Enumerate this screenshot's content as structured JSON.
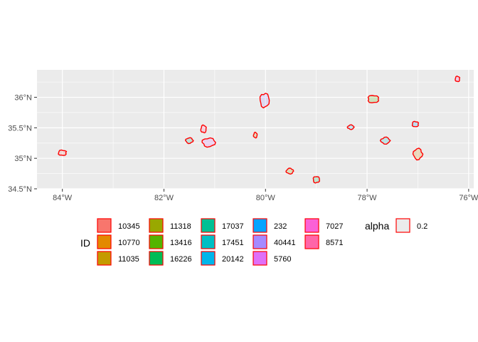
{
  "chart_data": {
    "type": "map",
    "panel_background": "#EBEBEB",
    "grid_color": "#FFFFFF",
    "outline_color": "#FF0000",
    "xlim": [
      -84.5,
      -75.9
    ],
    "ylim": [
      34.5,
      36.45
    ],
    "x_ticks": [
      {
        "value": -84,
        "label": "84°W"
      },
      {
        "value": -82,
        "label": "82°W"
      },
      {
        "value": -80,
        "label": "80°W"
      },
      {
        "value": -78,
        "label": "78°W"
      },
      {
        "value": -76,
        "label": "76°W"
      }
    ],
    "y_ticks": [
      {
        "value": 34.5,
        "label": "34.5°N"
      },
      {
        "value": 35.0,
        "label": "35°N"
      },
      {
        "value": 35.5,
        "label": "35.5°N"
      },
      {
        "value": 36.0,
        "label": "36°N"
      }
    ],
    "regions": [
      {
        "id": "10345",
        "lon": -84.0,
        "lat": 35.09,
        "rx": 0.09,
        "ry": 0.05
      },
      {
        "id": "17037",
        "lon": -81.5,
        "lat": 35.29,
        "rx": 0.08,
        "ry": 0.05
      },
      {
        "id": "8571",
        "lon": -81.22,
        "lat": 35.48,
        "rx": 0.06,
        "ry": 0.07
      },
      {
        "id": "5760",
        "lon": -81.12,
        "lat": 35.26,
        "rx": 0.14,
        "ry": 0.08
      },
      {
        "id": "11035",
        "lon": -80.2,
        "lat": 35.38,
        "rx": 0.04,
        "ry": 0.05
      },
      {
        "id": "40441",
        "lon": -80.02,
        "lat": 35.95,
        "rx": 0.1,
        "ry": 0.13
      },
      {
        "id": "11318",
        "lon": -79.52,
        "lat": 34.79,
        "rx": 0.08,
        "ry": 0.05
      },
      {
        "id": "16226",
        "lon": -79.0,
        "lat": 34.65,
        "rx": 0.07,
        "ry": 0.06
      },
      {
        "id": "20142",
        "lon": -78.32,
        "lat": 35.51,
        "rx": 0.07,
        "ry": 0.04
      },
      {
        "id": "13416",
        "lon": -77.88,
        "lat": 35.97,
        "rx": 0.12,
        "ry": 0.07
      },
      {
        "id": "17451",
        "lon": -77.64,
        "lat": 35.29,
        "rx": 0.1,
        "ry": 0.06
      },
      {
        "id": "232",
        "lon": -77.05,
        "lat": 35.56,
        "rx": 0.07,
        "ry": 0.05
      },
      {
        "id": "10770",
        "lon": -77.0,
        "lat": 35.07,
        "rx": 0.1,
        "ry": 0.1
      },
      {
        "id": "7027",
        "lon": -76.22,
        "lat": 36.3,
        "rx": 0.05,
        "ry": 0.05
      }
    ],
    "legend": {
      "placement": "bottom",
      "fill_title": "ID",
      "fill_items": [
        {
          "label": "10345",
          "color": "#F8766D"
        },
        {
          "label": "10770",
          "color": "#E38900"
        },
        {
          "label": "11035",
          "color": "#C49A00"
        },
        {
          "label": "11318",
          "color": "#99A800"
        },
        {
          "label": "13416",
          "color": "#53B400"
        },
        {
          "label": "16226",
          "color": "#00BC56"
        },
        {
          "label": "17037",
          "color": "#00C094"
        },
        {
          "label": "17451",
          "color": "#00BFC4"
        },
        {
          "label": "20142",
          "color": "#00B6EB"
        },
        {
          "label": "232",
          "color": "#06A4FF"
        },
        {
          "label": "40441",
          "color": "#A58AFF"
        },
        {
          "label": "5760",
          "color": "#DF70F8"
        },
        {
          "label": "7027",
          "color": "#FB61D7"
        },
        {
          "label": "8571",
          "color": "#FF66A8"
        }
      ],
      "alpha_title": "alpha",
      "alpha_items": [
        {
          "label": "0.2",
          "color": "#EBEBEB"
        }
      ]
    }
  }
}
